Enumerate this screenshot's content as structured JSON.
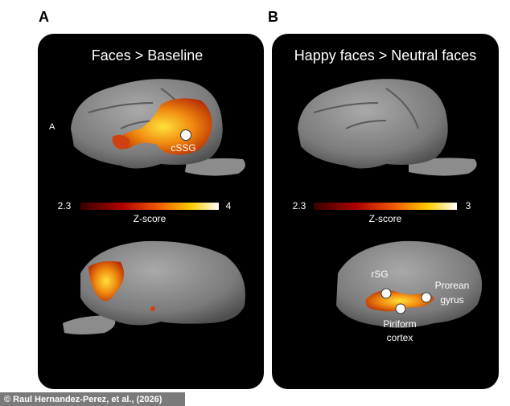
{
  "panels": [
    {
      "letter": "A",
      "title": "Faces > Baseline",
      "orientation_label": "A",
      "colorbar": {
        "min": "2.3",
        "max": "4",
        "label": "Z-score"
      },
      "labels": [
        [
          "cSSG"
        ]
      ]
    },
    {
      "letter": "B",
      "title": "Happy faces > Neutral faces",
      "colorbar": {
        "min": "2.3",
        "max": "3",
        "label": "Z-score"
      },
      "labels": [
        [
          "rSG"
        ],
        [
          "Prorean",
          "gyrus"
        ],
        [
          "Piriform",
          "cortex"
        ]
      ]
    }
  ],
  "credit": "© Raul Hernandez-Perez, et al., (2026)"
}
